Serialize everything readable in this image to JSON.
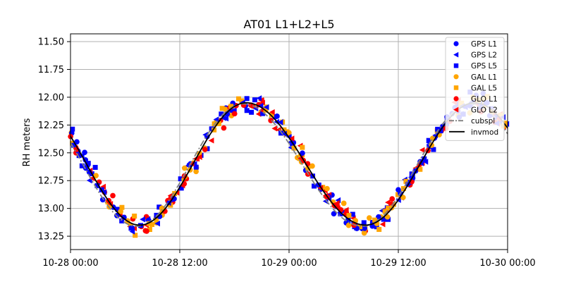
{
  "chart_data": {
    "type": "scatter",
    "title": "AT01 L1+L2+L5",
    "xlabel": "",
    "ylabel": "RH meters",
    "x_ticks": [
      "10-28 00:00",
      "10-28 12:00",
      "10-29 00:00",
      "10-29 12:00",
      "10-30 00:00"
    ],
    "x_range_hours": [
      0,
      48
    ],
    "y_ticks": [
      "11.50",
      "11.75",
      "12.00",
      "12.25",
      "12.50",
      "12.75",
      "13.00",
      "13.25"
    ],
    "ylim": [
      13.37,
      11.43
    ],
    "y_inverted": true,
    "grid": true,
    "legend_position": "upper-right",
    "model": {
      "description_mean": 12.6,
      "amplitude": 0.55,
      "low_hours": [
        7.6,
        32.4
      ],
      "high_hours": [
        19.3,
        44.4
      ]
    },
    "series": [
      {
        "name": "GPS L1",
        "color": "#0000ff",
        "marker": "circle"
      },
      {
        "name": "GPS L2",
        "color": "#0000ff",
        "marker": "triangle-left"
      },
      {
        "name": "GPS L5",
        "color": "#0000ff",
        "marker": "square"
      },
      {
        "name": "GAL L1",
        "color": "#ffa500",
        "marker": "circle"
      },
      {
        "name": "GAL L5",
        "color": "#ffa500",
        "marker": "square"
      },
      {
        "name": "GLO L1",
        "color": "#ff0000",
        "marker": "circle"
      },
      {
        "name": "GLO L2",
        "color": "#ff0000",
        "marker": "triangle-left"
      }
    ],
    "lines": [
      {
        "name": "cubspl",
        "color": "#808080",
        "style": "dashdot"
      },
      {
        "name": "invmod",
        "color": "#000000",
        "style": "solid"
      }
    ]
  }
}
